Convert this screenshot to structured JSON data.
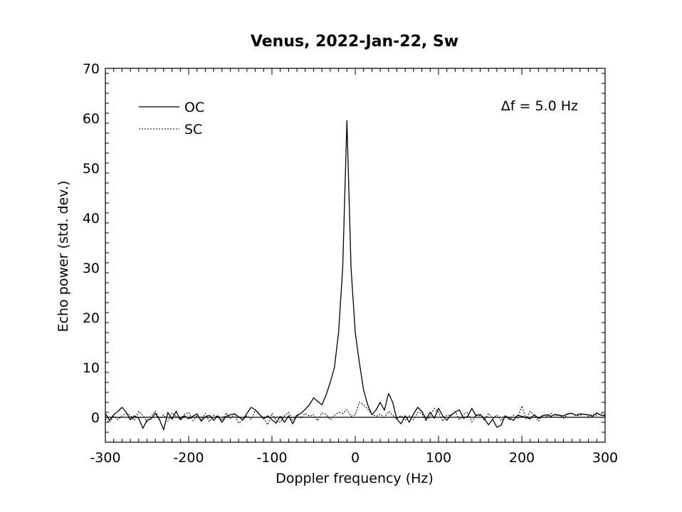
{
  "chart_data": {
    "type": "line",
    "title": "Venus, 2022-Jan-22, Sw",
    "xlabel": "Doppler frequency (Hz)",
    "ylabel": "Echo power (std. dev.)",
    "xlim": [
      -300,
      300
    ],
    "ylim": [
      -5,
      70
    ],
    "xticks": [
      -300,
      -200,
      -100,
      0,
      100,
      200,
      300
    ],
    "yticks": [
      0,
      10,
      20,
      30,
      40,
      50,
      60,
      70
    ],
    "grid": false,
    "legend_position": "top-left",
    "annotation": "Δf = 5.0 Hz",
    "zero_line": 0,
    "x": [
      -300,
      -295,
      -290,
      -285,
      -280,
      -275,
      -270,
      -265,
      -260,
      -255,
      -250,
      -245,
      -240,
      -235,
      -230,
      -225,
      -220,
      -215,
      -210,
      -205,
      -200,
      -195,
      -190,
      -185,
      -180,
      -175,
      -170,
      -165,
      -160,
      -155,
      -150,
      -145,
      -140,
      -135,
      -130,
      -125,
      -120,
      -115,
      -110,
      -105,
      -100,
      -95,
      -90,
      -85,
      -80,
      -75,
      -70,
      -65,
      -60,
      -55,
      -50,
      -45,
      -40,
      -35,
      -30,
      -25,
      -20,
      -15,
      -10,
      -5,
      0,
      5,
      10,
      15,
      20,
      25,
      30,
      35,
      40,
      45,
      50,
      55,
      60,
      65,
      70,
      75,
      80,
      85,
      90,
      95,
      100,
      105,
      110,
      115,
      120,
      125,
      130,
      135,
      140,
      145,
      150,
      155,
      160,
      165,
      170,
      175,
      180,
      185,
      190,
      195,
      200,
      205,
      210,
      215,
      220,
      225,
      230,
      235,
      240,
      245,
      250,
      255,
      260,
      265,
      270,
      275,
      280,
      285,
      290,
      295,
      300
    ],
    "series": [
      {
        "name": "OC",
        "style": "solid",
        "values": [
          0.8,
          -0.6,
          0.5,
          1.2,
          2.0,
          1.0,
          -0.5,
          0.3,
          -0.2,
          -2.2,
          -0.6,
          -0.3,
          0.8,
          -0.5,
          -2.5,
          1.0,
          -0.4,
          1.2,
          -0.5,
          0.3,
          -0.3,
          0.2,
          0.7,
          -0.8,
          0.1,
          0.4,
          -0.6,
          0.3,
          -1.0,
          0.2,
          0.5,
          0.7,
          0.1,
          -0.5,
          0.8,
          2.0,
          1.5,
          0.6,
          -0.3,
          0.3,
          -0.5,
          -1.2,
          0.2,
          -1.0,
          0.3,
          -1.3,
          0.4,
          0.8,
          1.6,
          2.5,
          3.9,
          3.2,
          2.5,
          4.5,
          7.0,
          10.0,
          17.0,
          30.0,
          59.5,
          30.0,
          17.0,
          11.0,
          5.5,
          2.5,
          0.5,
          1.5,
          3.0,
          1.4,
          4.8,
          3.0,
          -0.4,
          -1.3,
          0.3,
          -1.0,
          0.7,
          2.0,
          1.2,
          -0.4,
          1.0,
          -0.2,
          1.8,
          0.3,
          -0.6,
          0.5,
          1.0,
          1.5,
          -0.2,
          0.2,
          1.8,
          0.3,
          0.6,
          -0.3,
          -1.5,
          -0.4,
          -2.0,
          -1.6,
          0.3,
          -0.2,
          -0.6,
          0.4,
          0.2,
          0.0,
          -0.3,
          0.5,
          -0.2,
          0.3,
          0.5,
          0.2,
          0.6,
          0.4,
          0.3,
          0.7,
          0.8,
          0.4,
          0.7,
          0.6,
          0.5,
          0.2,
          0.9,
          0.4,
          0.3
        ]
      },
      {
        "name": "SC",
        "style": "dotted",
        "values": [
          -0.3,
          -1.0,
          0.2,
          -0.5,
          0.3,
          0.8,
          0.4,
          -0.6,
          1.2,
          0.3,
          -0.9,
          0.2,
          1.3,
          -0.4,
          0.5,
          -0.8,
          0.9,
          0.2,
          -0.3,
          0.6,
          1.0,
          -0.7,
          0.3,
          -0.5,
          0.8,
          -0.9,
          0.4,
          0.1,
          -0.6,
          0.9,
          -0.2,
          0.6,
          -1.2,
          -0.5,
          0.3,
          -0.4,
          1.4,
          0.6,
          -0.2,
          -1.5,
          0.8,
          -0.7,
          -1.0,
          0.3,
          1.0,
          -0.6,
          0.5,
          -0.2,
          0.8,
          0.2,
          0.5,
          -0.7,
          0.9,
          0.6,
          -0.5,
          0.4,
          1.0,
          0.8,
          1.5,
          0.2,
          0.5,
          3.0,
          2.5,
          1.6,
          0.6,
          0.2,
          0.6,
          0.0,
          1.2,
          0.4,
          -0.3,
          0.4,
          -0.6,
          0.3,
          -0.5,
          1.0,
          0.8,
          -0.8,
          0.3,
          1.8,
          1.0,
          -0.8,
          0.5,
          0.3,
          1.2,
          -0.5,
          0.6,
          1.0,
          -0.9,
          0.5,
          0.3,
          -0.6,
          0.8,
          -0.3,
          0.5,
          -0.7,
          0.3,
          -0.6,
          0.4,
          -0.2,
          2.3,
          -0.3,
          1.2,
          0.4,
          -0.8,
          0.5,
          0.2,
          0.8,
          0.3,
          0.5,
          -0.2,
          0.6,
          0.9,
          0.3,
          0.4,
          0.7,
          0.2,
          0.6,
          0.4,
          0.8,
          0.5
        ]
      }
    ]
  }
}
